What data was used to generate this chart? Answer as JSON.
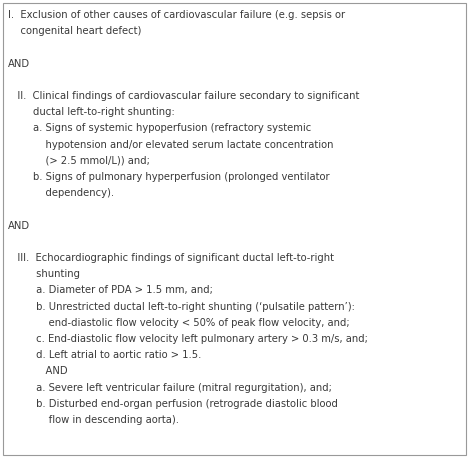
{
  "background_color": "#ffffff",
  "border_color": "#999999",
  "text_color": "#3a3a3a",
  "fontsize": 7.2,
  "lines": [
    {
      "text": "I.  Exclusion of other causes of cardiovascular failure (e.g. sepsis or",
      "indent": 0.12
    },
    {
      "text": "    congenital heart defect)",
      "indent": 0.12
    },
    {
      "text": "",
      "indent": 0.02
    },
    {
      "text": "AND",
      "indent": 0.02
    },
    {
      "text": "",
      "indent": 0.02
    },
    {
      "text": "   II.  Clinical findings of cardiovascular failure secondary to significant",
      "indent": 0.02
    },
    {
      "text": "        ductal left-to-right shunting:",
      "indent": 0.02
    },
    {
      "text": "        a. Signs of systemic hypoperfusion (refractory systemic",
      "indent": 0.02
    },
    {
      "text": "            hypotension and/or elevated serum lactate concentration",
      "indent": 0.02
    },
    {
      "text": "            (> 2.5 mmol/L)) and;",
      "indent": 0.02
    },
    {
      "text": "        b. Signs of pulmonary hyperperfusion (prolonged ventilator",
      "indent": 0.02
    },
    {
      "text": "            dependency).",
      "indent": 0.02
    },
    {
      "text": "",
      "indent": 0.02
    },
    {
      "text": "AND",
      "indent": 0.02
    },
    {
      "text": "",
      "indent": 0.02
    },
    {
      "text": "   III.  Echocardiographic findings of significant ductal left-to-right",
      "indent": 0.02
    },
    {
      "text": "         shunting",
      "indent": 0.02
    },
    {
      "text": "         a. Diameter of PDA > 1.5 mm, and;",
      "indent": 0.02
    },
    {
      "text": "         b. Unrestricted ductal left-to-right shunting (‘pulsatile pattern’):",
      "indent": 0.02
    },
    {
      "text": "             end-diastolic flow velocity < 50% of peak flow velocity, and;",
      "indent": 0.02
    },
    {
      "text": "         c. End-diastolic flow velocity left pulmonary artery > 0.3 m/s, and;",
      "indent": 0.02
    },
    {
      "text": "         d. Left atrial to aortic ratio > 1.5.",
      "indent": 0.02
    },
    {
      "text": "            AND",
      "indent": 0.02
    },
    {
      "text": "         a. Severe left ventricular failure (mitral regurgitation), and;",
      "indent": 0.02
    },
    {
      "text": "         b. Disturbed end-organ perfusion (retrograde diastolic blood",
      "indent": 0.02
    },
    {
      "text": "             flow in descending aorta).",
      "indent": 0.02
    }
  ]
}
